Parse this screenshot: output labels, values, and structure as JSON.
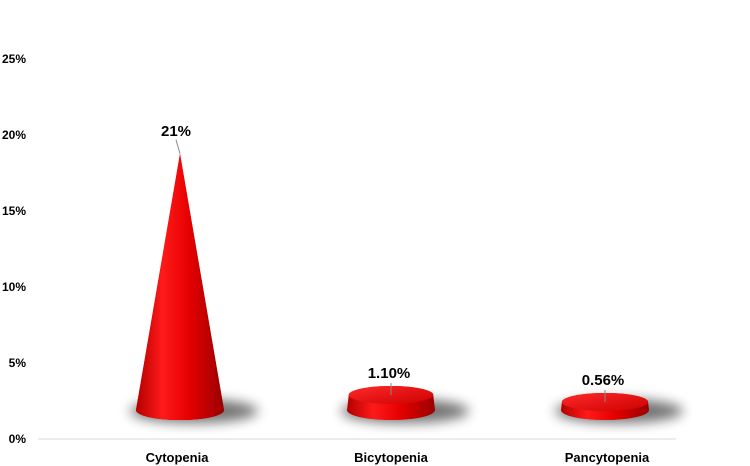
{
  "chart_data": {
    "type": "bar",
    "shape": "cone",
    "categories": [
      "Cytopenia",
      "Bicytopenia",
      "Pancytopenia"
    ],
    "values": [
      21,
      1.1,
      0.56
    ],
    "data_labels": [
      "21%",
      "1.10%",
      "0.56%"
    ],
    "y_ticks": [
      "0%",
      "5%",
      "10%",
      "15%",
      "20%",
      "25%"
    ],
    "ylim": [
      0,
      25
    ],
    "grid": false,
    "legend": "none",
    "bar_color": "#e00000"
  }
}
